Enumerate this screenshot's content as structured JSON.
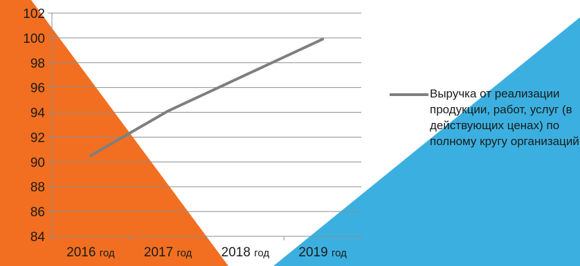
{
  "chart_data": {
    "type": "line",
    "categories": [
      "2016 год",
      "2017 год",
      "2018 год",
      "2019 год"
    ],
    "series": [
      {
        "name": "Выручка от реализации продукции, работ, услуг (в действующих ценах) по полному кругу организаций",
        "values": [
          90.5,
          94.1,
          97.0,
          99.9
        ],
        "color": "#7f7f7f"
      }
    ],
    "yticks": [
      84,
      86,
      88,
      90,
      92,
      94,
      96,
      98,
      100,
      102
    ],
    "ylim": [
      84,
      102
    ],
    "grid": true,
    "legend_position": "right",
    "title": "",
    "xlabel": "",
    "ylabel": ""
  },
  "theme": {
    "background_left": "#f26f21",
    "background_right": "#3bb0e0",
    "gridline": "#8c8c8c"
  }
}
